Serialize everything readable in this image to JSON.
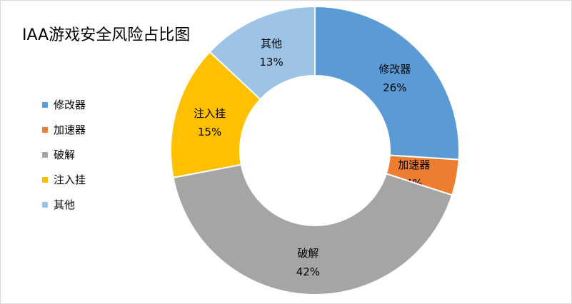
{
  "chart_data": {
    "type": "pie",
    "title": "IAA游戏安全风险占比图",
    "donut": true,
    "legend_position": "left",
    "categories": [
      "修改器",
      "加速器",
      "破解",
      "注入挂",
      "其他"
    ],
    "values": [
      26,
      4,
      42,
      15,
      13
    ],
    "value_labels": [
      "26%",
      "4%",
      "42%",
      "15%",
      "13%"
    ],
    "colors": [
      "#5B9BD5",
      "#ED7D31",
      "#A5A5A5",
      "#FFC000",
      "#9DC3E6"
    ]
  }
}
